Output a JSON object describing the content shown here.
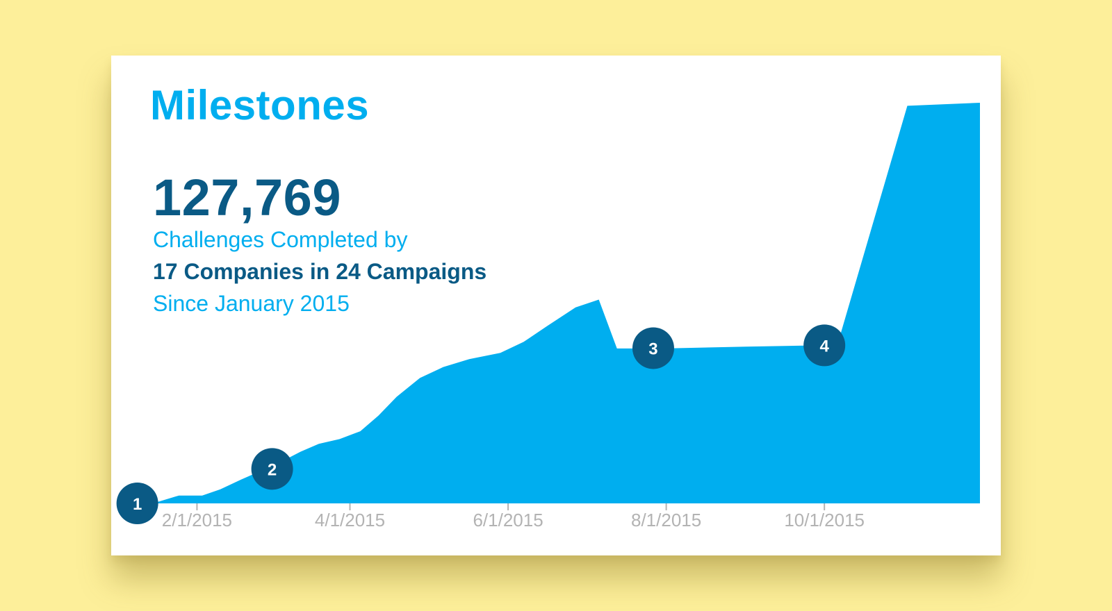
{
  "card": {
    "title": "Milestones",
    "total": "127,769",
    "line1": "Challenges Completed by",
    "line2": "17 Companies in 24 Campaigns",
    "line3": "Since January 2015"
  },
  "colors": {
    "background": "#fdef9a",
    "area": "#00aeef",
    "title": "#00aeef",
    "number": "#0a5a85",
    "marker": "#0a5a85",
    "tick_label": "#b3b3b3"
  },
  "chart_data": {
    "type": "area",
    "x_axis": {
      "type": "date",
      "range": [
        "2015-01-15",
        "2015-11-30"
      ],
      "ticks": [
        {
          "date": "2015-02-01",
          "label": "2/1/2015"
        },
        {
          "date": "2015-04-01",
          "label": "4/1/2015"
        },
        {
          "date": "2015-06-01",
          "label": "6/1/2015"
        },
        {
          "date": "2015-08-01",
          "label": "8/1/2015"
        },
        {
          "date": "2015-10-01",
          "label": "10/1/2015"
        }
      ]
    },
    "y_axis": {
      "range": [
        0,
        127769
      ],
      "visible": false
    },
    "grid": false,
    "series": [
      {
        "points": [
          [
            "2015-01-15",
            0
          ],
          [
            "2015-01-25",
            2500
          ],
          [
            "2015-02-03",
            2500
          ],
          [
            "2015-02-10",
            4500
          ],
          [
            "2015-02-18",
            7600
          ],
          [
            "2015-02-26",
            10500
          ],
          [
            "2015-03-06",
            13500
          ],
          [
            "2015-03-13",
            16500
          ],
          [
            "2015-03-20",
            19000
          ],
          [
            "2015-03-28",
            20500
          ],
          [
            "2015-04-05",
            23000
          ],
          [
            "2015-04-12",
            28000
          ],
          [
            "2015-04-19",
            34000
          ],
          [
            "2015-04-28",
            40000
          ],
          [
            "2015-05-07",
            43500
          ],
          [
            "2015-05-17",
            46000
          ],
          [
            "2015-05-29",
            48000
          ],
          [
            "2015-06-07",
            51500
          ],
          [
            "2015-06-16",
            56500
          ],
          [
            "2015-06-27",
            62500
          ],
          [
            "2015-07-06",
            65000
          ],
          [
            "2015-07-13",
            49400
          ],
          [
            "2015-07-13",
            49400
          ],
          [
            "2015-07-31",
            49400
          ],
          [
            "2015-09-01",
            50000
          ],
          [
            "2015-10-06",
            50500
          ],
          [
            "2015-11-02",
            126800
          ],
          [
            "2015-11-30",
            127769
          ]
        ]
      }
    ],
    "markers": [
      {
        "label": "1",
        "date": "2015-01-09",
        "value": 0
      },
      {
        "label": "2",
        "date": "2015-03-02",
        "value": 11000
      },
      {
        "label": "3",
        "date": "2015-07-27",
        "value": 49500
      },
      {
        "label": "4",
        "date": "2015-10-01",
        "value": 50400
      }
    ]
  }
}
